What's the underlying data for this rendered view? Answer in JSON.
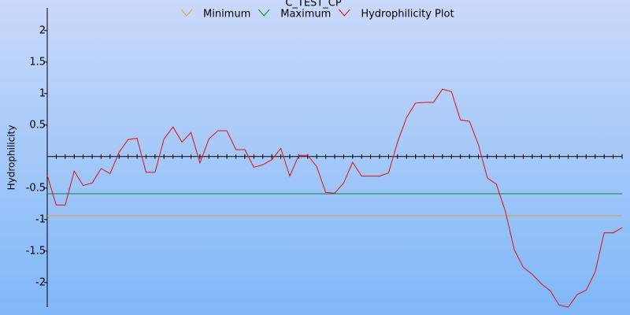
{
  "chart_data": {
    "type": "line",
    "title": "C_TEST_CP",
    "y_label": "Hydrophilicity",
    "ylim": [
      -2.39,
      2.36
    ],
    "yticks": [
      2,
      1.5,
      1,
      0.5,
      -0.5,
      -1,
      -1.5,
      -2
    ],
    "thresholds": [
      {
        "name": "Minimum",
        "color": "#e8a030",
        "value": -0.94
      },
      {
        "name": "Maximum",
        "color": "#108040",
        "value": -0.59
      }
    ],
    "series": [
      {
        "name": "Hydrophilicity Plot",
        "color": "#e01010",
        "values": [
          -0.3,
          -0.77,
          -0.77,
          -0.23,
          -0.46,
          -0.42,
          -0.19,
          -0.27,
          0.07,
          0.27,
          0.29,
          -0.25,
          -0.25,
          0.28,
          0.47,
          0.23,
          0.38,
          -0.1,
          0.28,
          0.41,
          0.41,
          0.11,
          0.11,
          -0.17,
          -0.13,
          -0.05,
          0.13,
          -0.31,
          0.02,
          0.02,
          -0.16,
          -0.57,
          -0.58,
          -0.42,
          -0.09,
          -0.31,
          -0.31,
          -0.31,
          -0.26,
          0.23,
          0.62,
          0.85,
          0.86,
          0.86,
          1.07,
          1.03,
          0.58,
          0.56,
          0.19,
          -0.34,
          -0.44,
          -0.87,
          -1.48,
          -1.76,
          -1.87,
          -2.02,
          -2.13,
          -2.36,
          -2.39,
          -2.19,
          -2.12,
          -1.83,
          -1.21,
          -1.21,
          -1.13
        ]
      }
    ]
  }
}
